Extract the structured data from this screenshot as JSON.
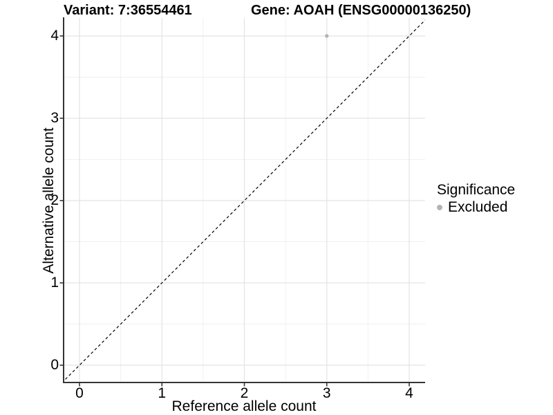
{
  "header": {
    "variant_title": "Variant: 7:36554461",
    "gene_title": "Gene: AOAH (ENSG00000136250)"
  },
  "legend": {
    "title": "Significance",
    "items": [
      {
        "label": "Excluded",
        "color": "#b4b4b4"
      }
    ]
  },
  "chart_data": {
    "type": "scatter",
    "title": "Variant: 7:36554461 | Gene: AOAH (ENSG00000136250)",
    "xlabel": "Reference allele count",
    "ylabel": "Alternative allele count",
    "x_ticks": [
      0,
      1,
      2,
      3,
      4
    ],
    "y_ticks": [
      0,
      1,
      2,
      3,
      4
    ],
    "xlim": [
      -0.21,
      4.19
    ],
    "ylim": [
      -0.21,
      4.22
    ],
    "grid": "major and minor gridlines, light gray, legend right",
    "legend_position": "right",
    "series": [
      {
        "name": "Excluded",
        "color": "#b4b4b4",
        "points": [
          {
            "x": 3,
            "y": 4
          }
        ]
      }
    ],
    "reference_line": {
      "type": "identity y=x",
      "style": "dashed",
      "color": "#000000"
    }
  },
  "colors": {
    "background": "#ffffff",
    "axis_line": "#333333",
    "grid_major": "#e3e3e3",
    "grid_minor": "#f0f0f0",
    "point": "#b4b4b4",
    "text": "#000000"
  }
}
